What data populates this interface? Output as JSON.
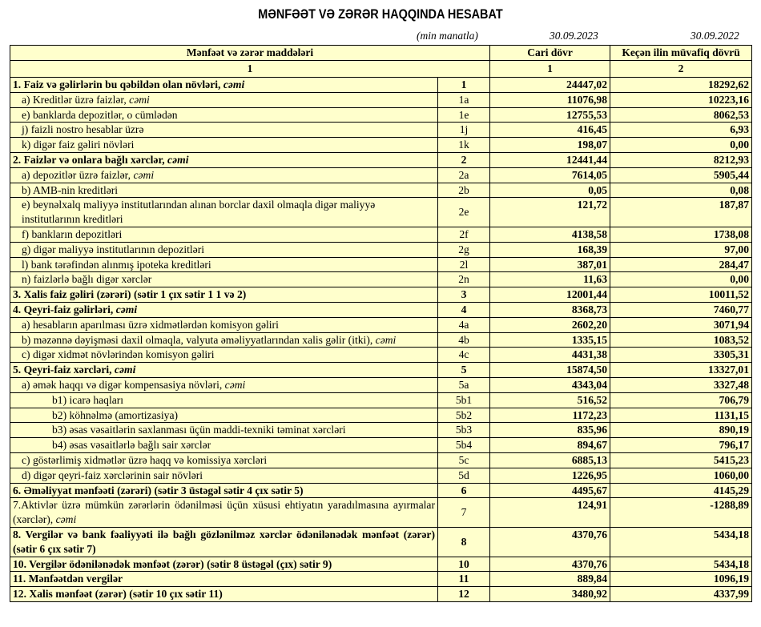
{
  "title": "MƏNFƏƏT VƏ ZƏRƏR HAQQINDA HESABAT",
  "unit_note": "(min manatla)",
  "date_current": "30.09.2023",
  "date_previous": "30.09.2022",
  "colors": {
    "table_background": "#ffffcc",
    "border": "#000000"
  },
  "header": {
    "col_items": "Mənfəət və zərər maddələri",
    "col_current": "Cari dövr",
    "col_previous": "Keçən ilin müvafiq dövrü",
    "num_items": "1",
    "num_current": "1",
    "num_previous": "2"
  },
  "rows": [
    {
      "label": "1. Faiz və gəlirlərin bu qəbildən olan növləri, ",
      "em": "cəmi",
      "code": "1",
      "current": "24447,02",
      "previous": "18292,62",
      "bold": true,
      "indent": 0
    },
    {
      "label": "a) Kreditlər üzrə faizlər, ",
      "em": "cəmi",
      "code": "1a",
      "current": "11076,98",
      "previous": "10223,16",
      "indent": 1
    },
    {
      "label": "e) banklarda depozitlər, o cümlədən",
      "code": "1e",
      "current": "12755,53",
      "previous": "8062,53",
      "indent": 1
    },
    {
      "label": "j) faizli nostro hesablar üzrə",
      "code": "1j",
      "current": "416,45",
      "previous": "6,93",
      "indent": 1
    },
    {
      "label": "k) digər faiz gəliri növləri",
      "code": "1k",
      "current": "198,07",
      "previous": "0,00",
      "indent": 1
    },
    {
      "label": "2. Faizlər və onlara bağlı xərclər, ",
      "em": "cəmi",
      "code": "2",
      "current": "12441,44",
      "previous": "8212,93",
      "bold": true,
      "indent": 0
    },
    {
      "label": "a) depozitlər üzrə faizlər, ",
      "em": "cəmi",
      "code": "2a",
      "current": "7614,05",
      "previous": "5905,44",
      "indent": 1
    },
    {
      "label": "b) AMB-nin kreditləri",
      "code": "2b",
      "current": "0,05",
      "previous": "0,08",
      "indent": 1
    },
    {
      "label": "e) beynəlxalq maliyyə institutlarından alınan borclar daxil olmaqla digər maliyyə institutlarının kreditləri",
      "code": "2e",
      "current": "121,72",
      "previous": "187,87",
      "indent": 1,
      "double": true
    },
    {
      "label": "f) bankların depozitləri",
      "code": "2f",
      "current": "4138,58",
      "previous": "1738,08",
      "indent": 1
    },
    {
      "label": "g) digər maliyyə institutlarının depozitləri",
      "code": "2g",
      "current": "168,39",
      "previous": "97,00",
      "indent": 1
    },
    {
      "label": "l) bank tərəfindən alınmış ipoteka kreditləri",
      "code": "2l",
      "current": "387,01",
      "previous": "284,47",
      "indent": 1
    },
    {
      "label": "n) faizlərlə bağlı digər xərclər",
      "code": "2n",
      "current": "11,63",
      "previous": "0,00",
      "indent": 1
    },
    {
      "label": "3. Xalis faiz gəliri (zərəri) (sətir 1 çıx sətir 1  1 və 2)",
      "code": "3",
      "current": "12001,44",
      "previous": "10011,52",
      "bold": true,
      "indent": 0
    },
    {
      "label": "4. Qeyri-faiz gəlirləri, ",
      "em": "cəmi",
      "code": "4",
      "current": "8368,73",
      "previous": "7460,77",
      "bold": true,
      "indent": 0
    },
    {
      "label": "a) hesabların aparılması üzrə xidmətlərdən komisyon gəliri",
      "code": "4a",
      "current": "2602,20",
      "previous": "3071,94",
      "indent": 1
    },
    {
      "label": "b) məzənnə dəyişməsi daxil olmaqla, valyuta əməliyyatlarından xalis gəlir (itki), ",
      "em": "cəmi",
      "code": "4b",
      "current": "1335,15",
      "previous": "1083,52",
      "indent": 1,
      "double": true
    },
    {
      "label": "c) digər xidmət növlərindən komisyon gəliri",
      "code": "4c",
      "current": "4431,38",
      "previous": "3305,31",
      "indent": 1
    },
    {
      "label": "5. Qeyri-faiz xərcləri, ",
      "em": "cəmi",
      "code": "5",
      "current": "15874,50",
      "previous": "13327,01",
      "bold": true,
      "indent": 0
    },
    {
      "label": "a) əmək haqqı və digər kompensasiya növləri, ",
      "em": "cəmi",
      "code": "5a",
      "current": "4343,04",
      "previous": "3327,48",
      "indent": 1
    },
    {
      "label": "b1) icarə haqları",
      "code": "5b1",
      "current": "516,52",
      "previous": "706,79",
      "indent": 2
    },
    {
      "label": "b2) köhnəlmə (amortizasiya)",
      "code": "5b2",
      "current": "1172,23",
      "previous": "1131,15",
      "indent": 2
    },
    {
      "label": "b3) əsas vəsaitlərin saxlanması üçün maddi-texniki təminat xərcləri",
      "code": "5b3",
      "current": "835,96",
      "previous": "890,19",
      "indent": 2
    },
    {
      "label": "b4) əsas vəsaitlərlə bağlı sair xərclər",
      "code": "5b4",
      "current": "894,67",
      "previous": "796,17",
      "indent": 2
    },
    {
      "label": "c) göstərlimiş xidmətlər üzrə haqq və komissiya xərcləri",
      "code": "5c",
      "current": "6885,13",
      "previous": "5415,23",
      "indent": 1
    },
    {
      "label": "d) digər qeyri-faiz xərclərinin sair növləri",
      "code": "5d",
      "current": "1226,95",
      "previous": "1060,00",
      "indent": 1
    },
    {
      "label": "6. Əməliyyat mənfəəti (zərəri) (sətir 3 üstəgəl sətir 4 çıx sətir 5)",
      "code": "6",
      "current": "4495,67",
      "previous": "4145,29",
      "bold": true,
      "indent": 0
    },
    {
      "label": "7.Aktivlər üzrə mümkün zərərlərin ödənilməsi üçün xüsusi ehtiyatın yaradılmasına ayırmalar (xərclər), ",
      "em": "cəmi",
      "code": "7",
      "current": "124,91",
      "previous": "-1288,89",
      "indent": 0,
      "double": true,
      "justify": true
    },
    {
      "label": "8. Vergilər və bank fəaliyyəti ilə bağlı gözlənilməz xərclər ödənilənədək mənfəət (zərər) (sətir 6 çıx sətir 7)",
      "code": "8",
      "current": "4370,76",
      "previous": "5434,18",
      "bold": true,
      "indent": 0,
      "double": true,
      "justify": true
    },
    {
      "label": "10. Vergilər ödənilənədək mənfəət (zərər) (sətir 8 üstəgəl (çıx) sətir 9)",
      "code": "10",
      "current": "4370,76",
      "previous": "5434,18",
      "bold": true,
      "indent": 0
    },
    {
      "label": "11. Mənfəətdən vergilər",
      "code": "11",
      "current": "889,84",
      "previous": "1096,19",
      "bold": true,
      "indent": 0
    },
    {
      "label": "12. Xalis mənfəət (zərər) (sətir 10 çıx sətir 11)",
      "code": "12",
      "current": "3480,92",
      "previous": "4337,99",
      "bold": true,
      "indent": 0
    }
  ]
}
